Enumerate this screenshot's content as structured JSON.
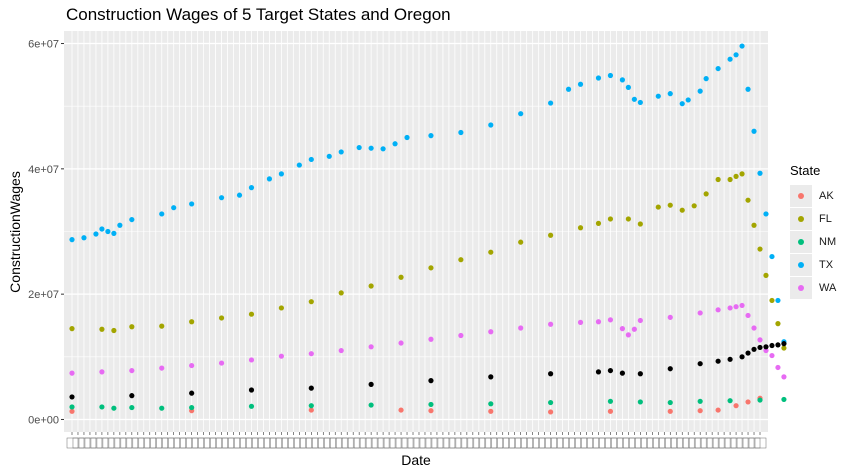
{
  "chart_data": {
    "type": "scatter",
    "title": "Construction Wages of 5 Target States and Oregon",
    "xlabel": "Date",
    "ylabel": "ConstructionWages",
    "ylim": [
      -2000000,
      62000000
    ],
    "y_ticks": [
      {
        "value": 0,
        "label": "0e+00"
      },
      {
        "value": 20000000,
        "label": "2e+07"
      },
      {
        "value": 40000000,
        "label": "4e+07"
      },
      {
        "value": 60000000,
        "label": "6e+07"
      }
    ],
    "x_tick_labels_note": "x tick labels are overlapping date strings, illegible",
    "x_index_range": [
      0,
      115
    ],
    "grid": true,
    "legend": {
      "title": "State",
      "position": "right"
    },
    "series": [
      {
        "name": "AK",
        "color": "#F8766D",
        "points": [
          [
            0,
            1300000
          ],
          [
            20,
            1400000
          ],
          [
            40,
            1500000
          ],
          [
            55,
            1500000
          ],
          [
            60,
            1400000
          ],
          [
            70,
            1300000
          ],
          [
            80,
            1200000
          ],
          [
            90,
            1300000
          ],
          [
            100,
            1300000
          ],
          [
            105,
            1400000
          ],
          [
            108,
            1500000
          ],
          [
            111,
            2200000
          ],
          [
            113,
            2800000
          ],
          [
            115,
            3400000
          ]
        ]
      },
      {
        "name": "FL",
        "color": "#A3A500",
        "points": [
          [
            0,
            14500000
          ],
          [
            5,
            14400000
          ],
          [
            7,
            14200000
          ],
          [
            10,
            14800000
          ],
          [
            15,
            14900000
          ],
          [
            20,
            15600000
          ],
          [
            25,
            16200000
          ],
          [
            30,
            16800000
          ],
          [
            35,
            17800000
          ],
          [
            40,
            18800000
          ],
          [
            45,
            20200000
          ],
          [
            50,
            21300000
          ],
          [
            55,
            22700000
          ],
          [
            60,
            24200000
          ],
          [
            65,
            25500000
          ],
          [
            70,
            26700000
          ],
          [
            75,
            28300000
          ],
          [
            80,
            29400000
          ],
          [
            85,
            30600000
          ],
          [
            88,
            31300000
          ],
          [
            90,
            32000000
          ],
          [
            93,
            32000000
          ],
          [
            95,
            31200000
          ],
          [
            98,
            33900000
          ],
          [
            100,
            34200000
          ],
          [
            102,
            33400000
          ],
          [
            104,
            34100000
          ],
          [
            106,
            36000000
          ],
          [
            108,
            38300000
          ],
          [
            110,
            38300000
          ],
          [
            111,
            38800000
          ],
          [
            112,
            39200000
          ],
          [
            113,
            35000000
          ],
          [
            114,
            31000000
          ],
          [
            115,
            27200000
          ],
          [
            116,
            23000000
          ],
          [
            117,
            19000000
          ],
          [
            118,
            15300000
          ],
          [
            119,
            11400000
          ]
        ]
      },
      {
        "name": "NM",
        "color": "#00BF7D",
        "points": [
          [
            0,
            2000000
          ],
          [
            5,
            2000000
          ],
          [
            7,
            1800000
          ],
          [
            10,
            1900000
          ],
          [
            15,
            1800000
          ],
          [
            20,
            1900000
          ],
          [
            30,
            2100000
          ],
          [
            40,
            2200000
          ],
          [
            50,
            2300000
          ],
          [
            60,
            2400000
          ],
          [
            70,
            2500000
          ],
          [
            80,
            2700000
          ],
          [
            90,
            2900000
          ],
          [
            95,
            2800000
          ],
          [
            100,
            2700000
          ],
          [
            105,
            2900000
          ],
          [
            110,
            3000000
          ],
          [
            115,
            3100000
          ],
          [
            119,
            3200000
          ]
        ]
      },
      {
        "name": "TX",
        "color": "#00B0F6",
        "points": [
          [
            0,
            28700000
          ],
          [
            2,
            29000000
          ],
          [
            4,
            29600000
          ],
          [
            5,
            30400000
          ],
          [
            6,
            30000000
          ],
          [
            7,
            29700000
          ],
          [
            8,
            31000000
          ],
          [
            10,
            31900000
          ],
          [
            15,
            32800000
          ],
          [
            17,
            33800000
          ],
          [
            20,
            34400000
          ],
          [
            25,
            35400000
          ],
          [
            28,
            35800000
          ],
          [
            30,
            37000000
          ],
          [
            33,
            38400000
          ],
          [
            35,
            39200000
          ],
          [
            38,
            40600000
          ],
          [
            40,
            41500000
          ],
          [
            43,
            42000000
          ],
          [
            45,
            42700000
          ],
          [
            48,
            43400000
          ],
          [
            50,
            43300000
          ],
          [
            52,
            43200000
          ],
          [
            54,
            44000000
          ],
          [
            56,
            45000000
          ],
          [
            60,
            45300000
          ],
          [
            65,
            45800000
          ],
          [
            70,
            47000000
          ],
          [
            75,
            48800000
          ],
          [
            80,
            50500000
          ],
          [
            83,
            52700000
          ],
          [
            85,
            53500000
          ],
          [
            88,
            54500000
          ],
          [
            90,
            54900000
          ],
          [
            92,
            54200000
          ],
          [
            93,
            53000000
          ],
          [
            94,
            51100000
          ],
          [
            95,
            50600000
          ],
          [
            98,
            51600000
          ],
          [
            100,
            52000000
          ],
          [
            102,
            50400000
          ],
          [
            103,
            51000000
          ],
          [
            105,
            52400000
          ],
          [
            106,
            54400000
          ],
          [
            108,
            56000000
          ],
          [
            110,
            57500000
          ],
          [
            111,
            58200000
          ],
          [
            112,
            59600000
          ],
          [
            113,
            52700000
          ],
          [
            114,
            46000000
          ],
          [
            115,
            39300000
          ],
          [
            116,
            32800000
          ],
          [
            117,
            26000000
          ],
          [
            118,
            19000000
          ],
          [
            119,
            12400000
          ]
        ]
      },
      {
        "name": "WA",
        "color": "#E76BF3",
        "points": [
          [
            0,
            7400000
          ],
          [
            5,
            7600000
          ],
          [
            10,
            7800000
          ],
          [
            15,
            8200000
          ],
          [
            20,
            8600000
          ],
          [
            25,
            9000000
          ],
          [
            30,
            9500000
          ],
          [
            35,
            10100000
          ],
          [
            40,
            10500000
          ],
          [
            45,
            11000000
          ],
          [
            50,
            11600000
          ],
          [
            55,
            12200000
          ],
          [
            60,
            12800000
          ],
          [
            65,
            13400000
          ],
          [
            70,
            14000000
          ],
          [
            75,
            14600000
          ],
          [
            80,
            15200000
          ],
          [
            85,
            15500000
          ],
          [
            88,
            15600000
          ],
          [
            90,
            15900000
          ],
          [
            92,
            14500000
          ],
          [
            93,
            13500000
          ],
          [
            94,
            14400000
          ],
          [
            95,
            15800000
          ],
          [
            100,
            16300000
          ],
          [
            105,
            17000000
          ],
          [
            108,
            17500000
          ],
          [
            110,
            17800000
          ],
          [
            111,
            18000000
          ],
          [
            112,
            18200000
          ],
          [
            113,
            16600000
          ],
          [
            114,
            14600000
          ],
          [
            115,
            12700000
          ],
          [
            116,
            11000000
          ],
          [
            117,
            10200000
          ],
          [
            118,
            8300000
          ],
          [
            119,
            6800000
          ]
        ]
      },
      {
        "name": "",
        "color": "#000000",
        "points": [
          [
            0,
            3600000
          ],
          [
            10,
            3800000
          ],
          [
            20,
            4200000
          ],
          [
            30,
            4700000
          ],
          [
            40,
            5000000
          ],
          [
            50,
            5600000
          ],
          [
            60,
            6200000
          ],
          [
            70,
            6800000
          ],
          [
            80,
            7300000
          ],
          [
            88,
            7600000
          ],
          [
            90,
            7800000
          ],
          [
            92,
            7400000
          ],
          [
            95,
            7300000
          ],
          [
            100,
            8100000
          ],
          [
            105,
            8900000
          ],
          [
            108,
            9300000
          ],
          [
            110,
            9600000
          ],
          [
            112,
            10000000
          ],
          [
            113,
            10600000
          ],
          [
            114,
            11200000
          ],
          [
            115,
            11500000
          ],
          [
            116,
            11600000
          ],
          [
            117,
            11800000
          ],
          [
            118,
            11900000
          ],
          [
            119,
            12100000
          ]
        ]
      }
    ]
  }
}
